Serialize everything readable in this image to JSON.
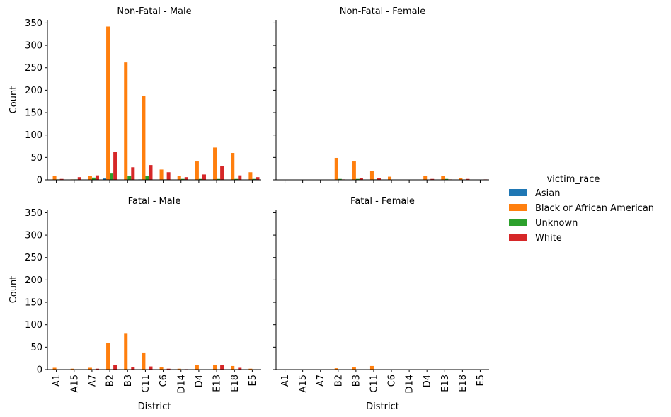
{
  "legend": {
    "title": "victim_race",
    "entries": [
      {
        "name": "Asian",
        "color": "#1f77b4"
      },
      {
        "name": "Black or African American",
        "color": "#ff7f0e"
      },
      {
        "name": "Unknown",
        "color": "#2ca02c"
      },
      {
        "name": "White",
        "color": "#d62728"
      }
    ]
  },
  "chart_data": [
    {
      "type": "bar",
      "title": "Non-Fatal - Male",
      "xlabel": "",
      "ylabel": "Count",
      "ylim": [
        0,
        357
      ],
      "yticks": [
        0,
        50,
        100,
        150,
        200,
        250,
        300,
        350
      ],
      "categories": [
        "A1",
        "A15",
        "A7",
        "B2",
        "B3",
        "C11",
        "C6",
        "D14",
        "D4",
        "E13",
        "E18",
        "E5"
      ],
      "series": [
        {
          "name": "Asian",
          "values": [
            0,
            0,
            0,
            3,
            0,
            1,
            0,
            0,
            0,
            0,
            0,
            0
          ]
        },
        {
          "name": "Black or African American",
          "values": [
            9,
            1,
            8,
            342,
            262,
            187,
            23,
            9,
            41,
            72,
            60,
            17
          ]
        },
        {
          "name": "Unknown",
          "values": [
            1,
            1,
            5,
            14,
            9,
            9,
            1,
            2,
            2,
            2,
            2,
            2
          ]
        },
        {
          "name": "White",
          "values": [
            2,
            6,
            10,
            62,
            28,
            33,
            17,
            6,
            12,
            30,
            10,
            6
          ]
        }
      ]
    },
    {
      "type": "bar",
      "title": "Non-Fatal - Female",
      "xlabel": "",
      "ylabel": "",
      "ylim": [
        0,
        357
      ],
      "yticks": [
        0,
        50,
        100,
        150,
        200,
        250,
        300,
        350
      ],
      "categories": [
        "A1",
        "A15",
        "A7",
        "B2",
        "B3",
        "C11",
        "C6",
        "D14",
        "D4",
        "E13",
        "E18",
        "E5"
      ],
      "series": [
        {
          "name": "Asian",
          "values": [
            0,
            0,
            0,
            0,
            0,
            0,
            0,
            0,
            0,
            0,
            0,
            0
          ]
        },
        {
          "name": "Black or African American",
          "values": [
            0,
            0,
            0,
            49,
            41,
            19,
            7,
            0,
            9,
            9,
            4,
            0
          ]
        },
        {
          "name": "Unknown",
          "values": [
            0,
            0,
            0,
            2,
            2,
            1,
            0,
            0,
            0,
            2,
            0,
            0
          ]
        },
        {
          "name": "White",
          "values": [
            0,
            0,
            0,
            1,
            4,
            4,
            0,
            0,
            2,
            1,
            2,
            1
          ]
        }
      ]
    },
    {
      "type": "bar",
      "title": "Fatal - Male",
      "xlabel": "District",
      "ylabel": "Count",
      "ylim": [
        0,
        357
      ],
      "yticks": [
        0,
        50,
        100,
        150,
        200,
        250,
        300,
        350
      ],
      "categories": [
        "A1",
        "A15",
        "A7",
        "B2",
        "B3",
        "C11",
        "C6",
        "D14",
        "D4",
        "E13",
        "E18",
        "E5"
      ],
      "series": [
        {
          "name": "Asian",
          "values": [
            0,
            0,
            0,
            0,
            0,
            0,
            0,
            0,
            0,
            0,
            0,
            0
          ]
        },
        {
          "name": "Black or African American",
          "values": [
            4,
            2,
            4,
            60,
            80,
            38,
            5,
            2,
            10,
            10,
            8,
            2
          ]
        },
        {
          "name": "Unknown",
          "values": [
            0,
            0,
            0,
            0,
            0,
            0,
            0,
            0,
            0,
            0,
            0,
            0
          ]
        },
        {
          "name": "White",
          "values": [
            0,
            0,
            2,
            10,
            6,
            7,
            2,
            1,
            0,
            10,
            4,
            0
          ]
        }
      ]
    },
    {
      "type": "bar",
      "title": "Fatal - Female",
      "xlabel": "District",
      "ylabel": "",
      "ylim": [
        0,
        357
      ],
      "yticks": [
        0,
        50,
        100,
        150,
        200,
        250,
        300,
        350
      ],
      "categories": [
        "A1",
        "A15",
        "A7",
        "B2",
        "B3",
        "C11",
        "C6",
        "D14",
        "D4",
        "E13",
        "E18",
        "E5"
      ],
      "series": [
        {
          "name": "Asian",
          "values": [
            0,
            0,
            0,
            0,
            0,
            0,
            0,
            0,
            0,
            0,
            0,
            0
          ]
        },
        {
          "name": "Black or African American",
          "values": [
            0,
            0,
            0,
            3,
            5,
            8,
            0,
            0,
            0,
            0,
            0,
            0
          ]
        },
        {
          "name": "Unknown",
          "values": [
            0,
            0,
            0,
            0,
            0,
            0,
            0,
            0,
            0,
            0,
            0,
            0
          ]
        },
        {
          "name": "White",
          "values": [
            0,
            0,
            0,
            0,
            0,
            0,
            0,
            0,
            0,
            0,
            0,
            0
          ]
        }
      ]
    }
  ]
}
